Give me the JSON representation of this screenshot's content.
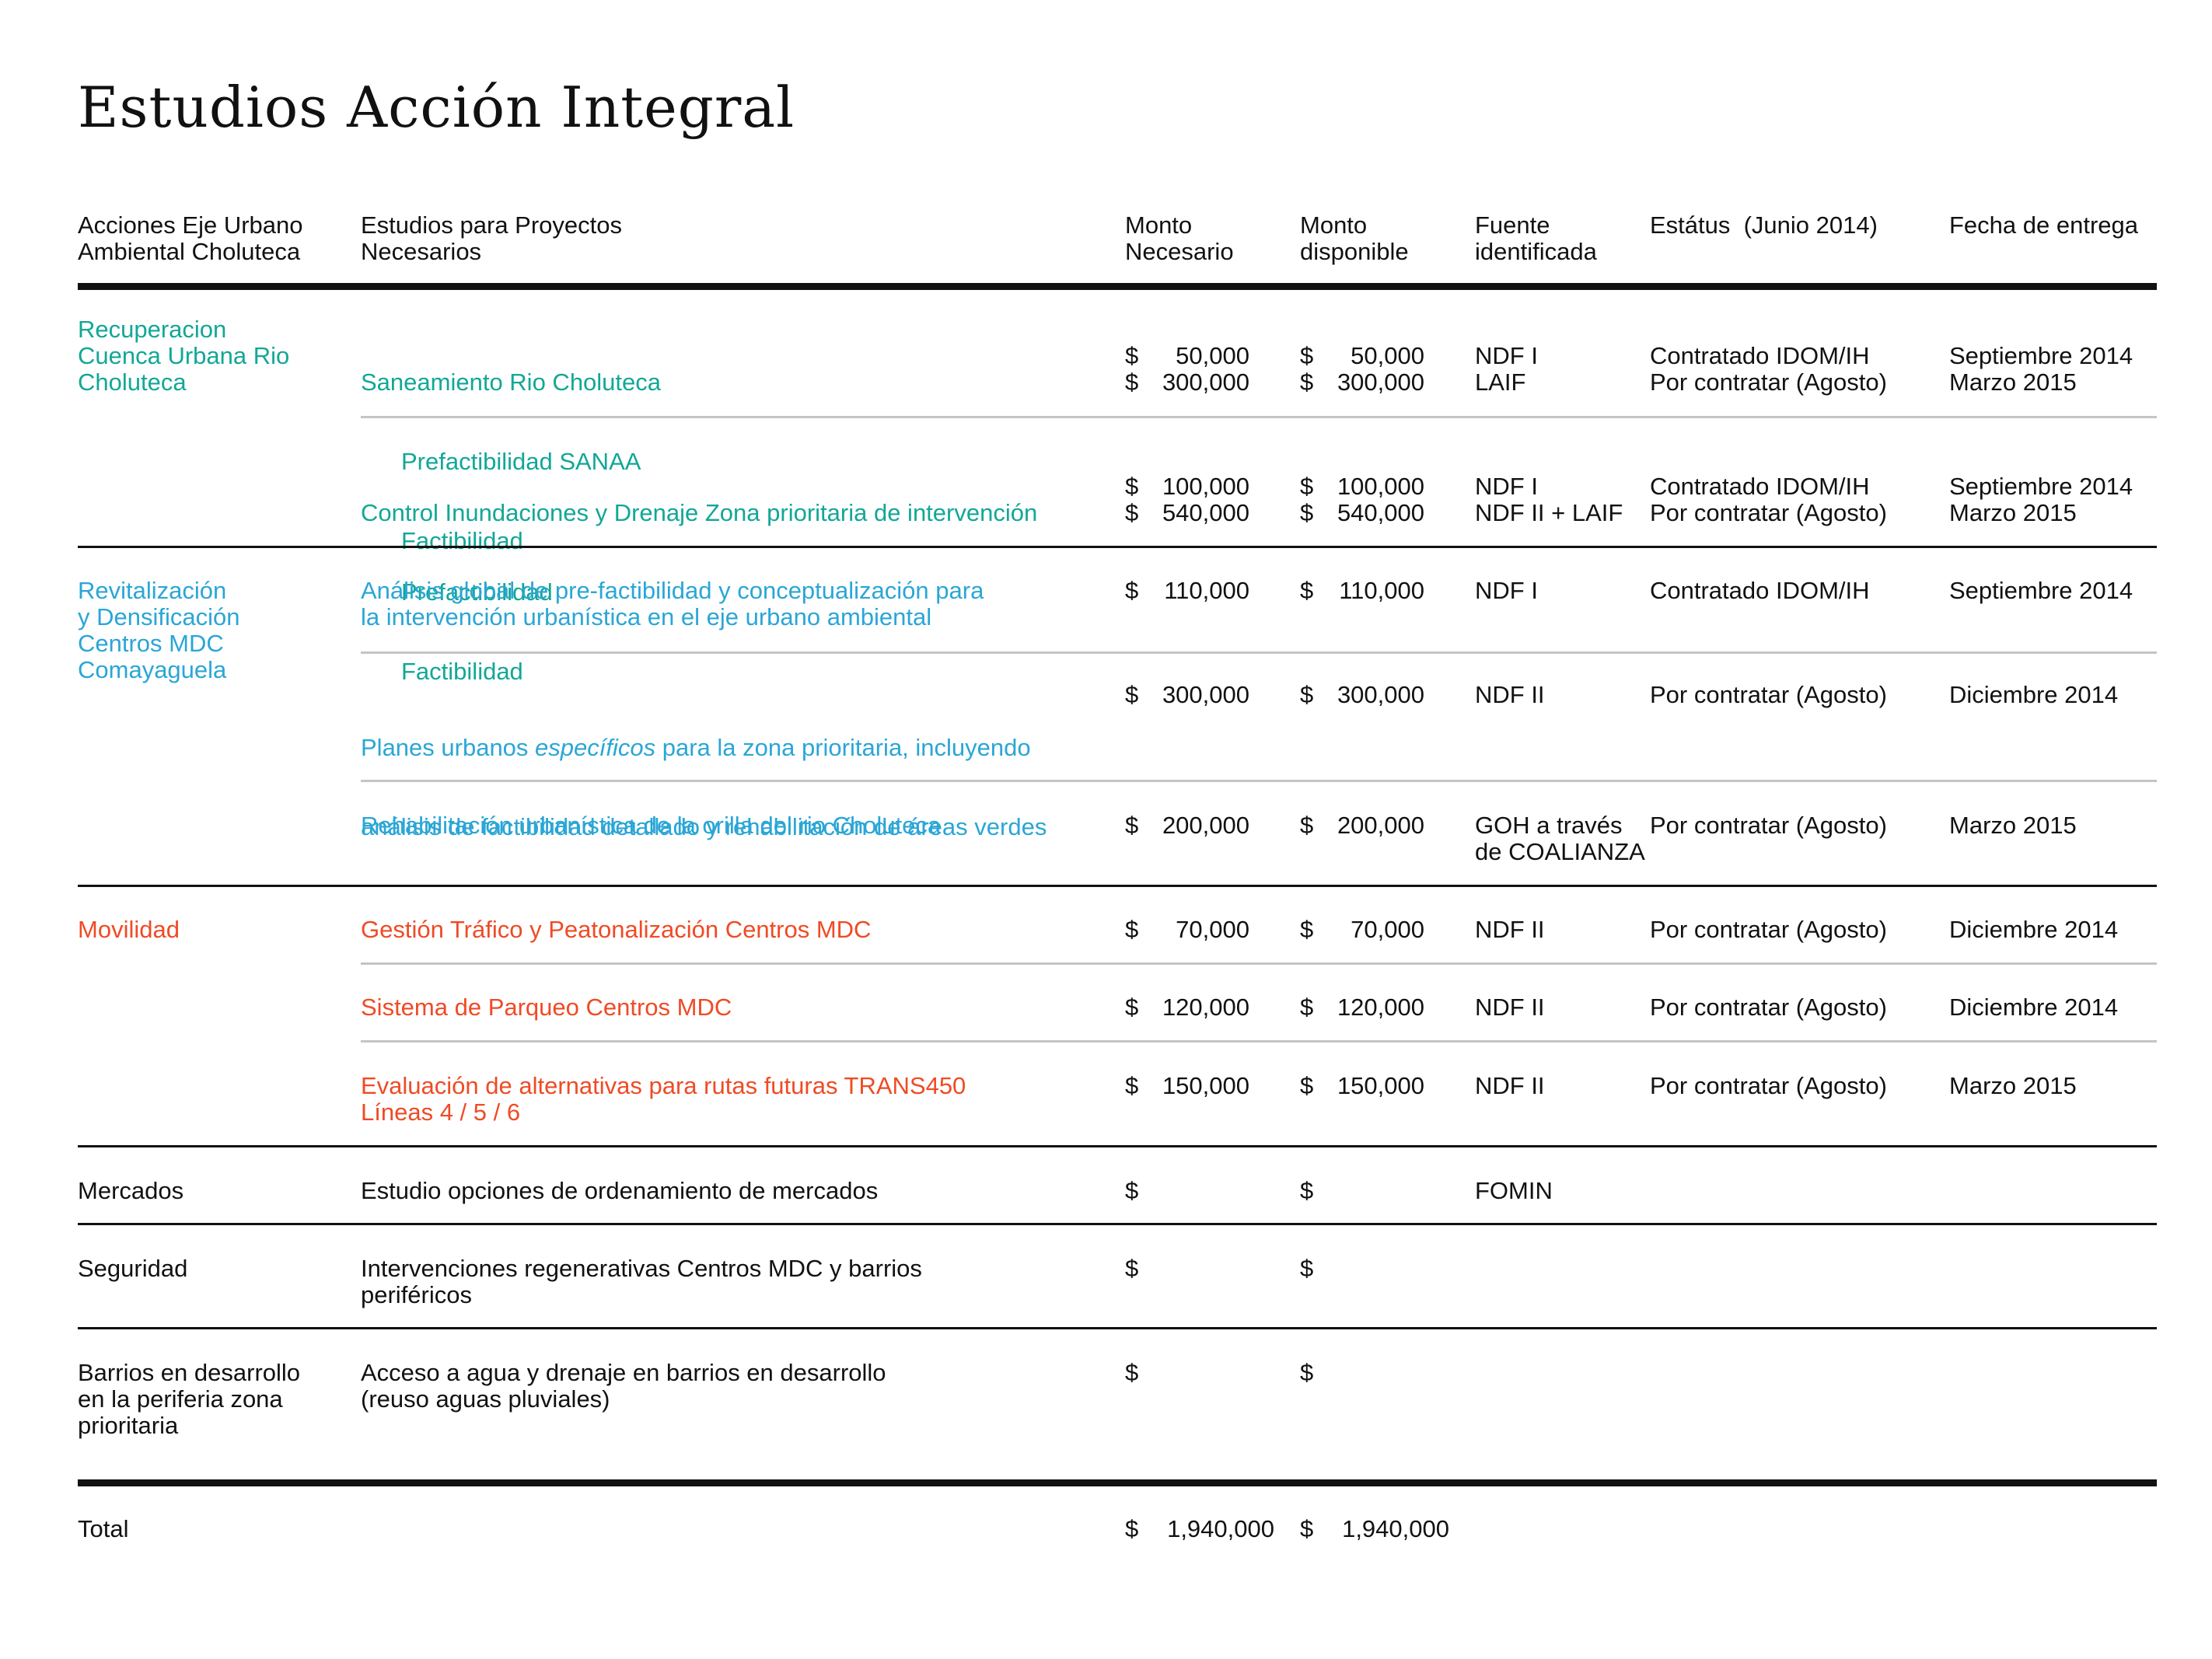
{
  "title": "Estudios Acción Integral",
  "headers": {
    "acciones": "Acciones Eje Urbano\nAmbiental Choluteca",
    "estudios": "Estudios para Proyectos\nNecesarios",
    "necesario": "Monto\nNecesario",
    "disponible": "Monto\ndisponible",
    "fuente": "Fuente\nidentificada",
    "estatus": "Estátus  (Junio 2014)",
    "fecha": "Fecha de entrega"
  },
  "colors": {
    "teal": "#12a797",
    "blue": "#2aa6d6",
    "orange": "#ef4b25"
  },
  "currency": "$",
  "groups": {
    "recuperacion": {
      "label": "Recuperacion\nCuenca Urbana Rio\nCholuteca",
      "studies": [
        {
          "title": "Saneamiento Rio Choluteca",
          "sub1": "Prefactibilidad SANAA",
          "sub2": "Factibilidad",
          "necesario1": "50,000",
          "necesario2": "300,000",
          "disponible1": "50,000",
          "disponible2": "300,000",
          "fuente": "NDF I\nLAIF",
          "estatus": "Contratado IDOM/IH\nPor contratar (Agosto)",
          "fecha": "Septiembre 2014\nMarzo 2015"
        },
        {
          "title": "Control Inundaciones y Drenaje Zona prioritaria de intervención",
          "sub1": "Prefactibilidad",
          "sub2": "Factibilidad",
          "necesario1": "100,000",
          "necesario2": "540,000",
          "disponible1": "100,000",
          "disponible2": "540,000",
          "fuente": "NDF I\nNDF II + LAIF",
          "estatus": "Contratado IDOM/IH\nPor contratar (Agosto)",
          "fecha": "Septiembre 2014\nMarzo 2015"
        }
      ]
    },
    "revitalizacion": {
      "label": "Revitalización\ny Densificación\nCentros MDC\nComayaguela",
      "studies": [
        {
          "title": "Análisis global de pre-factibilidad y conceptualización para\nla intervención urbanística en el eje urbano ambiental",
          "necesario": "110,000",
          "disponible": "110,000",
          "fuente": "NDF I",
          "estatus": "Contratado IDOM/IH",
          "fecha": "Septiembre 2014"
        },
        {
          "title_pre": "Planes urbanos ",
          "title_em": "específicos",
          "title_post": " para la zona prioritaria, incluyendo",
          "title_line2": "análisis de factibilidad detallado y rehabilitación de áreas verdes",
          "necesario": "300,000",
          "disponible": "300,000",
          "fuente": "NDF II",
          "estatus": "Por contratar (Agosto)",
          "fecha": "Diciembre 2014"
        },
        {
          "title": "Rehabilitación urbanística de la orilla del rio Choluteca",
          "necesario": "200,000",
          "disponible": "200,000",
          "fuente": "GOH a través\nde COALIANZA",
          "estatus": "Por contratar (Agosto)",
          "fecha": "Marzo 2015"
        }
      ]
    },
    "movilidad": {
      "label": "Movilidad",
      "studies": [
        {
          "title": "Gestión Tráfico y Peatonalización Centros MDC",
          "necesario": "70,000",
          "disponible": "70,000",
          "fuente": "NDF II",
          "estatus": "Por contratar (Agosto)",
          "fecha": "Diciembre 2014"
        },
        {
          "title": "Sistema de Parqueo Centros MDC",
          "necesario": "120,000",
          "disponible": "120,000",
          "fuente": "NDF II",
          "estatus": "Por contratar (Agosto)",
          "fecha": "Diciembre 2014"
        },
        {
          "title": "Evaluación de alternativas para rutas futuras TRANS450\nLíneas 4 / 5 / 6",
          "necesario": "150,000",
          "disponible": "150,000",
          "fuente": "NDF II",
          "estatus": "Por contratar (Agosto)",
          "fecha": "Marzo 2015"
        }
      ]
    },
    "mercados": {
      "label": "Mercados",
      "studies": [
        {
          "title": "Estudio opciones de ordenamiento de mercados",
          "fuente": "FOMIN"
        }
      ]
    },
    "seguridad": {
      "label": "Seguridad",
      "studies": [
        {
          "title": "Intervenciones regenerativas Centros MDC y barrios\nperiféricos"
        }
      ]
    },
    "barrios": {
      "label": "Barrios en desarrollo\nen la periferia zona\nprioritaria",
      "studies": [
        {
          "title": "Acceso a agua y drenaje en barrios en desarrollo\n(reuso aguas pluviales)"
        }
      ]
    }
  },
  "total": {
    "label": "Total",
    "necesario": "1,940,000",
    "disponible": "1,940,000"
  }
}
